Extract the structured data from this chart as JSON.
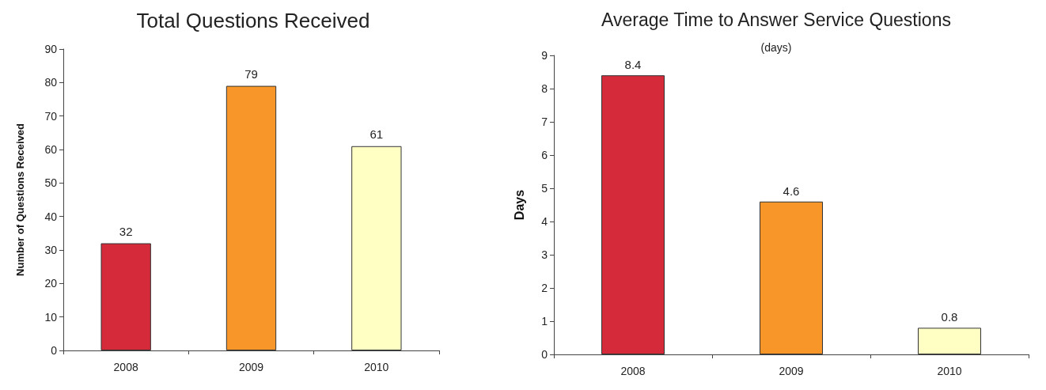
{
  "chart_data": [
    {
      "type": "bar",
      "title": "Total Questions Received",
      "ylabel": "Number of Questions Received",
      "categories": [
        "2008",
        "2009",
        "2010"
      ],
      "values": [
        32,
        79,
        61
      ],
      "colors": [
        "#d42a3a",
        "#f9962a",
        "#ffffc4"
      ],
      "ylim": [
        0,
        90
      ],
      "yticks": [
        0,
        10,
        20,
        30,
        40,
        50,
        60,
        70,
        80,
        90
      ],
      "data_labels": true
    },
    {
      "type": "bar",
      "title": "Average Time to Answer Service Questions",
      "subtitle": "(days)",
      "ylabel": "Days",
      "categories": [
        "2008",
        "2009",
        "2010"
      ],
      "values": [
        8.4,
        4.6,
        0.8
      ],
      "colors": [
        "#d42a3a",
        "#f9962a",
        "#ffffc4"
      ],
      "ylim": [
        0,
        9
      ],
      "yticks": [
        0,
        1,
        2,
        3,
        4,
        5,
        6,
        7,
        8,
        9
      ],
      "data_labels": true
    }
  ]
}
